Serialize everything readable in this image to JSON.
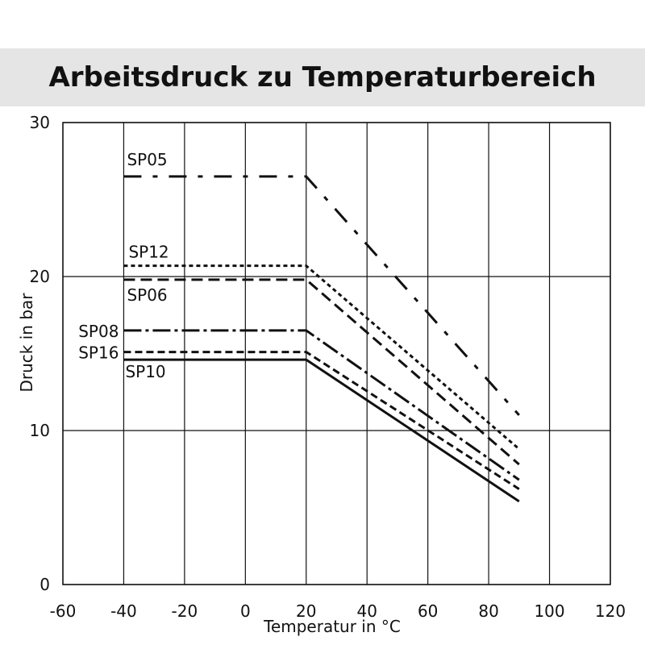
{
  "chart_data": {
    "type": "line",
    "title": "Arbeitsdruck zu Temperaturbereich",
    "xlabel": "Temperatur in °C",
    "ylabel": "Druck in bar",
    "xlim": [
      -60,
      120
    ],
    "ylim": [
      0,
      30
    ],
    "x_ticks": [
      "-60",
      "-40",
      "-20",
      "0",
      "20",
      "40",
      "60",
      "80",
      "100",
      "120"
    ],
    "y_ticks": [
      "0",
      "10",
      "20",
      "30"
    ],
    "grid": true,
    "series": [
      {
        "name": "SP05",
        "x": [
          -40,
          20,
          90
        ],
        "y": [
          26.5,
          26.5,
          11.0
        ],
        "dash": "22 14 6 14"
      },
      {
        "name": "SP12",
        "x": [
          -40,
          20,
          90
        ],
        "y": [
          20.7,
          20.7,
          8.8
        ],
        "dash": "5 4"
      },
      {
        "name": "SP06",
        "x": [
          -40,
          20,
          90
        ],
        "y": [
          19.8,
          19.8,
          7.8
        ],
        "dash": "14 7"
      },
      {
        "name": "SP08",
        "x": [
          -40,
          20,
          90
        ],
        "y": [
          16.5,
          16.5,
          6.8
        ],
        "dash": "22 5 4 5"
      },
      {
        "name": "SP16",
        "x": [
          -40,
          20,
          90
        ],
        "y": [
          15.1,
          15.1,
          6.2
        ],
        "dash": "9 5"
      },
      {
        "name": "SP10",
        "x": [
          -40,
          20,
          90
        ],
        "y": [
          14.6,
          14.6,
          5.4
        ],
        "dash": ""
      }
    ]
  }
}
